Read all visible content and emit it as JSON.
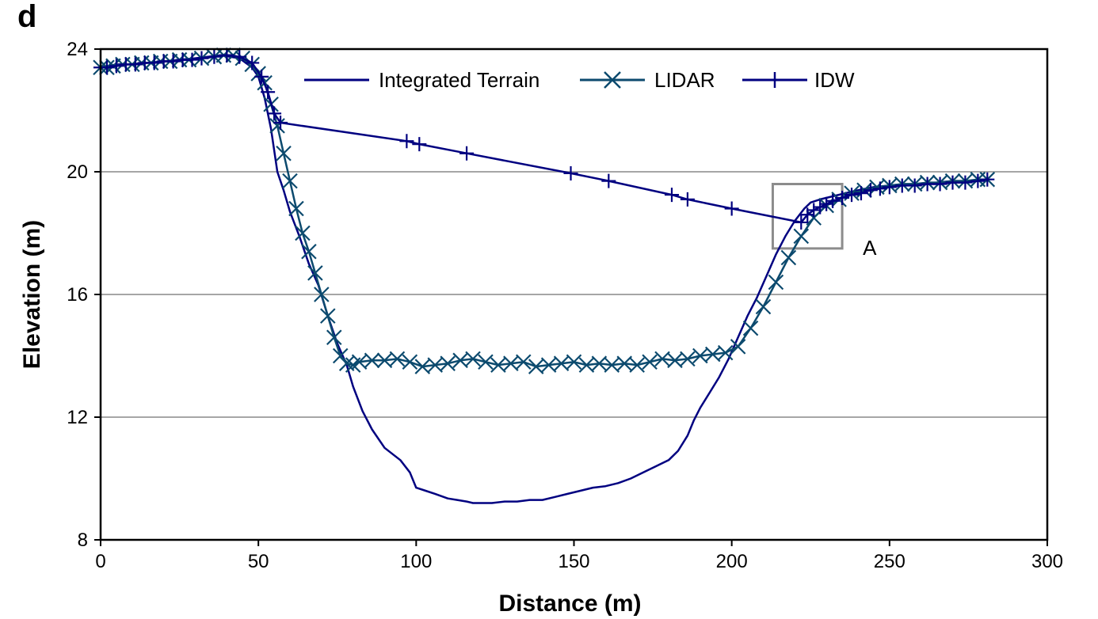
{
  "panel_label": "d",
  "colors": {
    "integrated_terrain": "#000080",
    "lidar": "#0c4a6e",
    "idw": "#000080",
    "grid": "#a6a6a6",
    "box": "#8c8c8c"
  },
  "chart_data": {
    "type": "line",
    "xlabel": "Distance (m)",
    "ylabel": "Elevation (m)",
    "xlim": [
      0,
      300
    ],
    "ylim": [
      8,
      24
    ],
    "xticks": [
      0,
      50,
      100,
      150,
      200,
      250,
      300
    ],
    "yticks": [
      8,
      12,
      16,
      20,
      24
    ],
    "grid": "horizontal",
    "legend_position": "top-center",
    "annotation": {
      "text": "A",
      "box": {
        "x": [
          213,
          235
        ],
        "y": [
          17.5,
          19.6
        ]
      }
    },
    "series": [
      {
        "name": "Integrated Terrain",
        "marker": "none",
        "x": [
          0,
          5,
          10,
          20,
          30,
          38,
          44,
          48,
          50,
          52,
          54,
          56,
          58,
          60,
          63,
          66,
          69,
          72,
          75,
          78,
          80,
          83,
          86,
          90,
          95,
          98,
          100,
          103,
          106,
          110,
          113,
          116,
          118,
          121,
          124,
          128,
          132,
          136,
          140,
          144,
          148,
          152,
          156,
          160,
          164,
          168,
          172,
          176,
          178,
          180,
          183,
          186,
          188,
          190,
          193,
          196,
          199,
          202,
          205,
          208,
          211,
          214,
          217,
          220,
          223,
          225,
          228,
          232,
          236,
          240,
          245,
          250,
          255,
          260,
          265,
          270,
          275,
          280
        ],
        "y": [
          23.4,
          23.5,
          23.5,
          23.6,
          23.7,
          23.8,
          23.7,
          23.4,
          23.1,
          22.4,
          21.4,
          20.0,
          19.4,
          18.7,
          17.9,
          17.0,
          16.3,
          15.3,
          14.4,
          13.7,
          13.0,
          12.2,
          11.6,
          11.0,
          10.6,
          10.2,
          9.7,
          9.6,
          9.5,
          9.35,
          9.3,
          9.25,
          9.2,
          9.2,
          9.2,
          9.25,
          9.25,
          9.3,
          9.3,
          9.4,
          9.5,
          9.6,
          9.7,
          9.75,
          9.85,
          10.0,
          10.2,
          10.4,
          10.5,
          10.6,
          10.9,
          11.4,
          11.9,
          12.3,
          12.8,
          13.3,
          13.9,
          14.6,
          15.3,
          15.9,
          16.6,
          17.3,
          17.9,
          18.4,
          18.8,
          19.0,
          19.1,
          19.2,
          19.3,
          19.4,
          19.5,
          19.55,
          19.6,
          19.6,
          19.65,
          19.7,
          19.7,
          19.75
        ]
      },
      {
        "name": "LIDAR",
        "marker": "x",
        "x": [
          0,
          2,
          4,
          7,
          10,
          13,
          16,
          19,
          22,
          25,
          28,
          32,
          36,
          39,
          42,
          45,
          48,
          50,
          52,
          54,
          56,
          58,
          60,
          62,
          64,
          66,
          68,
          70,
          72,
          74,
          76,
          78,
          80,
          82,
          86,
          90,
          94,
          98,
          102,
          106,
          110,
          114,
          118,
          122,
          126,
          130,
          134,
          138,
          142,
          146,
          150,
          154,
          158,
          162,
          166,
          170,
          174,
          178,
          182,
          186,
          190,
          194,
          198,
          202,
          206,
          210,
          214,
          218,
          222,
          226,
          230,
          234,
          238,
          242,
          246,
          250,
          254,
          258,
          262,
          266,
          270,
          274,
          278,
          281
        ],
        "y": [
          23.4,
          23.4,
          23.45,
          23.5,
          23.5,
          23.55,
          23.55,
          23.6,
          23.6,
          23.65,
          23.65,
          23.7,
          23.75,
          23.8,
          23.8,
          23.7,
          23.5,
          23.2,
          22.9,
          22.2,
          21.5,
          20.6,
          19.7,
          18.8,
          18.0,
          17.4,
          16.7,
          16.0,
          15.3,
          14.6,
          14.0,
          13.75,
          13.7,
          13.8,
          13.85,
          13.85,
          13.9,
          13.8,
          13.65,
          13.7,
          13.75,
          13.85,
          13.9,
          13.8,
          13.7,
          13.75,
          13.8,
          13.65,
          13.7,
          13.75,
          13.8,
          13.7,
          13.75,
          13.7,
          13.75,
          13.7,
          13.8,
          13.9,
          13.85,
          13.9,
          14.0,
          14.05,
          14.1,
          14.3,
          14.9,
          15.6,
          16.4,
          17.2,
          17.9,
          18.5,
          18.9,
          19.1,
          19.3,
          19.4,
          19.5,
          19.55,
          19.6,
          19.6,
          19.65,
          19.65,
          19.7,
          19.7,
          19.75,
          19.75
        ]
      },
      {
        "name": "IDW",
        "marker": "+",
        "x": [
          0,
          2,
          5,
          8,
          11,
          14,
          17,
          20,
          23,
          26,
          29,
          32,
          36,
          40,
          44,
          48,
          51,
          53,
          55,
          57,
          97,
          101,
          116,
          149,
          161,
          181,
          186,
          200,
          222,
          224,
          226,
          228,
          230,
          232,
          235,
          238,
          241,
          244,
          247,
          250,
          254,
          258,
          262,
          266,
          270,
          274,
          278,
          281
        ],
        "y": [
          23.4,
          23.4,
          23.45,
          23.5,
          23.5,
          23.55,
          23.55,
          23.6,
          23.6,
          23.65,
          23.65,
          23.7,
          23.75,
          23.8,
          23.75,
          23.55,
          23.1,
          22.6,
          21.9,
          21.6,
          21.0,
          20.9,
          20.6,
          19.95,
          19.7,
          19.25,
          19.1,
          18.8,
          18.35,
          18.6,
          18.75,
          18.85,
          18.95,
          19.05,
          19.15,
          19.25,
          19.3,
          19.4,
          19.45,
          19.5,
          19.55,
          19.55,
          19.6,
          19.6,
          19.65,
          19.65,
          19.7,
          19.75
        ]
      }
    ]
  }
}
